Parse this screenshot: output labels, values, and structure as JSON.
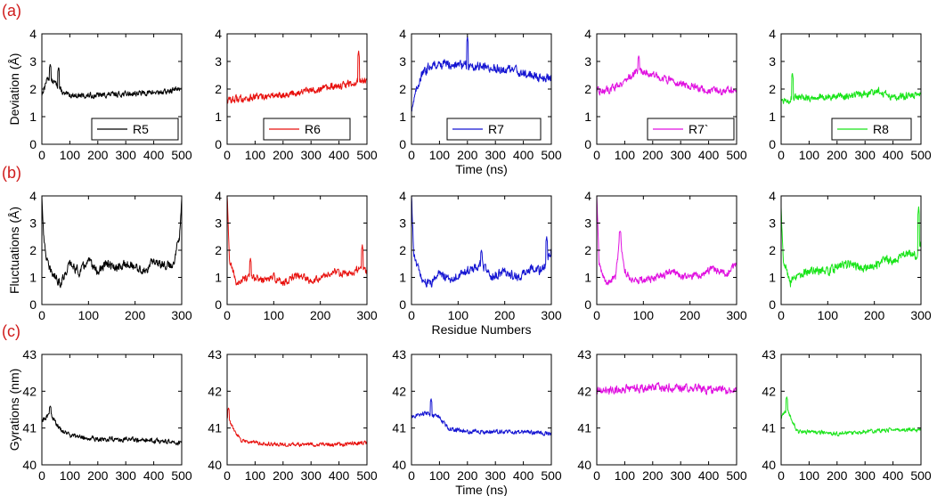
{
  "chart_data": {
    "type": "line",
    "colors": {
      "R5": "#000000",
      "R6": "#e8110e",
      "R7": "#1414d2",
      "R7`": "#e011e0",
      "R8": "#19e419"
    },
    "rows": [
      {
        "panel_label": "(a)",
        "ylabel": "Deviation (Å)",
        "xlabel": "Time (ns)",
        "xlim": [
          0,
          500
        ],
        "ylim": [
          0,
          4
        ],
        "xticks": [
          "0",
          "100",
          "200",
          "300",
          "400",
          "500"
        ],
        "yticks": [
          "0",
          "1",
          "2",
          "3",
          "4"
        ],
        "legend": true,
        "series": [
          {
            "name": "R5",
            "points": [
              [
                0,
                1.8
              ],
              [
                20,
                2.4
              ],
              [
                50,
                2.2
              ],
              [
                80,
                1.8
              ],
              [
                150,
                1.75
              ],
              [
                250,
                1.8
              ],
              [
                350,
                1.85
              ],
              [
                450,
                1.9
              ],
              [
                500,
                2.05
              ]
            ],
            "noise": 0.15,
            "spikes": [
              [
                30,
                2.9
              ],
              [
                60,
                2.8
              ]
            ]
          },
          {
            "name": "R6",
            "points": [
              [
                0,
                1.6
              ],
              [
                100,
                1.7
              ],
              [
                200,
                1.8
              ],
              [
                300,
                1.95
              ],
              [
                400,
                2.1
              ],
              [
                500,
                2.35
              ]
            ],
            "noise": 0.2,
            "spikes": [
              [
                470,
                3.4
              ]
            ]
          },
          {
            "name": "R7",
            "points": [
              [
                0,
                1.3
              ],
              [
                30,
                2.4
              ],
              [
                70,
                2.9
              ],
              [
                150,
                2.9
              ],
              [
                250,
                2.8
              ],
              [
                350,
                2.7
              ],
              [
                450,
                2.45
              ],
              [
                500,
                2.4
              ]
            ],
            "noise": 0.25,
            "spikes": [
              [
                200,
                3.9
              ]
            ]
          },
          {
            "name": "R7`",
            "points": [
              [
                0,
                1.9
              ],
              [
                50,
                2.0
              ],
              [
                100,
                2.3
              ],
              [
                150,
                2.7
              ],
              [
                200,
                2.5
              ],
              [
                300,
                2.2
              ],
              [
                400,
                1.9
              ],
              [
                500,
                1.95
              ]
            ],
            "noise": 0.2,
            "spikes": [
              [
                150,
                3.2
              ]
            ]
          },
          {
            "name": "R8",
            "points": [
              [
                0,
                1.6
              ],
              [
                100,
                1.7
              ],
              [
                200,
                1.7
              ],
              [
                300,
                1.8
              ],
              [
                350,
                1.95
              ],
              [
                400,
                1.7
              ],
              [
                500,
                1.8
              ]
            ],
            "noise": 0.2,
            "spikes": [
              [
                40,
                2.6
              ]
            ]
          }
        ]
      },
      {
        "panel_label": "(b)",
        "ylabel": "Fluctuations (Å)",
        "xlabel": "Residue Numbers",
        "xlim": [
          0,
          300
        ],
        "ylim": [
          0,
          4
        ],
        "xticks": [
          "0",
          "100",
          "200",
          "300"
        ],
        "yticks": [
          "0",
          "1",
          "2",
          "3",
          "4"
        ],
        "legend": false,
        "series": [
          {
            "name": "R5",
            "points": [
              [
                0,
                4.0
              ],
              [
                5,
                2.2
              ],
              [
                15,
                1.3
              ],
              [
                40,
                0.8
              ],
              [
                60,
                1.5
              ],
              [
                80,
                1.2
              ],
              [
                100,
                1.6
              ],
              [
                120,
                1.2
              ],
              [
                140,
                1.5
              ],
              [
                160,
                1.3
              ],
              [
                180,
                1.5
              ],
              [
                200,
                1.4
              ],
              [
                220,
                1.2
              ],
              [
                240,
                1.6
              ],
              [
                260,
                1.5
              ],
              [
                280,
                1.4
              ],
              [
                295,
                2.5
              ],
              [
                300,
                4.0
              ]
            ],
            "noise": 0.25,
            "spikes": []
          },
          {
            "name": "R6",
            "points": [
              [
                0,
                4.0
              ],
              [
                5,
                1.6
              ],
              [
                20,
                0.8
              ],
              [
                50,
                1.0
              ],
              [
                80,
                0.9
              ],
              [
                100,
                1.0
              ],
              [
                120,
                0.8
              ],
              [
                150,
                1.1
              ],
              [
                180,
                0.9
              ],
              [
                200,
                1.0
              ],
              [
                230,
                1.2
              ],
              [
                260,
                1.1
              ],
              [
                280,
                1.3
              ],
              [
                300,
                1.2
              ]
            ],
            "noise": 0.2,
            "spikes": [
              [
                50,
                1.7
              ],
              [
                290,
                2.2
              ]
            ]
          },
          {
            "name": "R7",
            "points": [
              [
                0,
                4.0
              ],
              [
                5,
                1.8
              ],
              [
                20,
                1.0
              ],
              [
                40,
                0.7
              ],
              [
                60,
                1.2
              ],
              [
                80,
                0.9
              ],
              [
                100,
                1.1
              ],
              [
                130,
                1.3
              ],
              [
                150,
                1.5
              ],
              [
                170,
                1.0
              ],
              [
                200,
                1.2
              ],
              [
                230,
                1.0
              ],
              [
                260,
                1.4
              ],
              [
                280,
                1.2
              ],
              [
                300,
                2.0
              ]
            ],
            "noise": 0.25,
            "spikes": [
              [
                150,
                2.0
              ],
              [
                290,
                2.5
              ]
            ]
          },
          {
            "name": "R7`",
            "points": [
              [
                0,
                4.0
              ],
              [
                5,
                1.5
              ],
              [
                20,
                0.8
              ],
              [
                40,
                1.0
              ],
              [
                50,
                2.5
              ],
              [
                60,
                1.2
              ],
              [
                80,
                0.9
              ],
              [
                100,
                0.9
              ],
              [
                130,
                1.0
              ],
              [
                160,
                1.2
              ],
              [
                190,
                1.0
              ],
              [
                220,
                1.1
              ],
              [
                250,
                1.3
              ],
              [
                280,
                1.1
              ],
              [
                300,
                1.6
              ]
            ],
            "noise": 0.2,
            "spikes": [
              [
                50,
                2.7
              ]
            ]
          },
          {
            "name": "R8",
            "points": [
              [
                0,
                3.5
              ],
              [
                5,
                1.7
              ],
              [
                20,
                0.8
              ],
              [
                40,
                1.1
              ],
              [
                70,
                1.3
              ],
              [
                100,
                1.2
              ],
              [
                130,
                1.5
              ],
              [
                160,
                1.4
              ],
              [
                190,
                1.3
              ],
              [
                220,
                1.6
              ],
              [
                250,
                1.7
              ],
              [
                270,
                1.9
              ],
              [
                290,
                1.8
              ],
              [
                300,
                2.4
              ]
            ],
            "noise": 0.25,
            "spikes": [
              [
                295,
                3.6
              ]
            ]
          }
        ]
      },
      {
        "panel_label": "(c)",
        "ylabel": "Gyrations (nm)",
        "xlabel": "Time (ns)",
        "xlim": [
          0,
          500
        ],
        "ylim": [
          40,
          43
        ],
        "xticks": [
          "0",
          "100",
          "200",
          "300",
          "400",
          "500"
        ],
        "yticks": [
          "40",
          "41",
          "42",
          "43"
        ],
        "legend": false,
        "series": [
          {
            "name": "R5",
            "points": [
              [
                0,
                41.2
              ],
              [
                30,
                41.4
              ],
              [
                60,
                41.0
              ],
              [
                100,
                40.8
              ],
              [
                200,
                40.7
              ],
              [
                300,
                40.7
              ],
              [
                400,
                40.65
              ],
              [
                500,
                40.6
              ]
            ],
            "noise": 0.1,
            "spikes": [
              [
                30,
                41.6
              ]
            ]
          },
          {
            "name": "R6",
            "points": [
              [
                0,
                41.3
              ],
              [
                20,
                41.0
              ],
              [
                50,
                40.65
              ],
              [
                100,
                40.6
              ],
              [
                200,
                40.55
              ],
              [
                300,
                40.55
              ],
              [
                400,
                40.55
              ],
              [
                500,
                40.6
              ]
            ],
            "noise": 0.08,
            "spikes": [
              [
                5,
                41.55
              ]
            ]
          },
          {
            "name": "R7",
            "points": [
              [
                0,
                41.3
              ],
              [
                50,
                41.4
              ],
              [
                100,
                41.3
              ],
              [
                130,
                41.0
              ],
              [
                200,
                40.9
              ],
              [
                300,
                40.9
              ],
              [
                400,
                40.9
              ],
              [
                500,
                40.85
              ]
            ],
            "noise": 0.09,
            "spikes": [
              [
                70,
                41.8
              ]
            ]
          },
          {
            "name": "R7`",
            "points": [
              [
                0,
                42.0
              ],
              [
                100,
                42.05
              ],
              [
                200,
                42.1
              ],
              [
                300,
                42.1
              ],
              [
                400,
                42.05
              ],
              [
                500,
                42.0
              ]
            ],
            "noise": 0.17,
            "spikes": []
          },
          {
            "name": "R8",
            "points": [
              [
                0,
                41.3
              ],
              [
                20,
                41.5
              ],
              [
                40,
                41.2
              ],
              [
                60,
                40.9
              ],
              [
                100,
                40.9
              ],
              [
                200,
                40.85
              ],
              [
                300,
                40.9
              ],
              [
                400,
                40.95
              ],
              [
                500,
                40.95
              ]
            ],
            "noise": 0.08,
            "spikes": [
              [
                20,
                41.85
              ]
            ]
          }
        ]
      }
    ]
  }
}
